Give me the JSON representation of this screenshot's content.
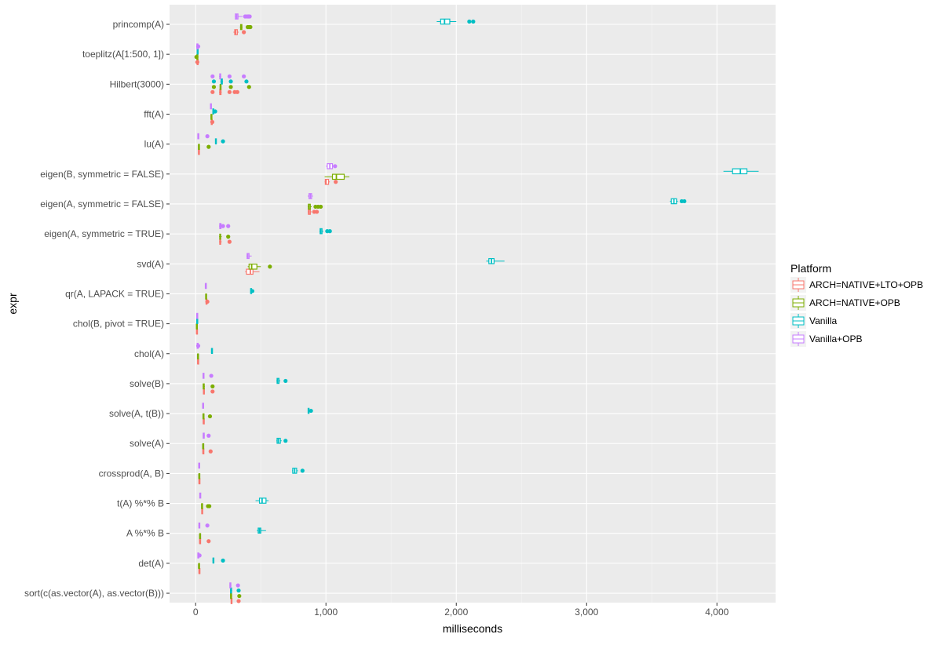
{
  "chart_data": {
    "type": "boxplot",
    "orientation": "horizontal",
    "xlabel": "milliseconds",
    "ylabel": "expr",
    "xlim": [
      -200,
      4450
    ],
    "x_ticks": [
      0,
      1000,
      2000,
      3000,
      4000
    ],
    "x_tick_labels": [
      "0",
      "1,000",
      "2,000",
      "3,000",
      "4,000"
    ],
    "grid": true,
    "legend_position": "right",
    "legend": {
      "title": "Platform",
      "entries": [
        "ARCH=NATIVE+LTO+OPB",
        "ARCH=NATIVE+OPB",
        "Vanilla",
        "Vanilla+OPB"
      ]
    },
    "colors": {
      "ARCH=NATIVE+LTO+OPB": "#F8766D",
      "ARCH=NATIVE+OPB": "#7CAE00",
      "Vanilla": "#00BFC4",
      "Vanilla+OPB": "#C77CFF"
    },
    "panel_background": "#EBEBEB",
    "categories": [
      "princomp(A)",
      "toeplitz(A[1:500, 1])",
      "Hilbert(3000)",
      "fft(A)",
      "lu(A)",
      "eigen(B, symmetric = FALSE)",
      "eigen(A, symmetric = FALSE)",
      "eigen(A, symmetric = TRUE)",
      "svd(A)",
      "qr(A, LAPACK = TRUE)",
      "chol(B, pivot = TRUE)",
      "chol(A)",
      "solve(B)",
      "solve(A, t(B))",
      "solve(A)",
      "crossprod(A, B)",
      "t(A) %*% B",
      "A %*% B",
      "det(A)",
      "sort(c(as.vector(A), as.vector(B)))"
    ],
    "series": [
      {
        "name": "ARCH=NATIVE+LTO+OPB",
        "boxes": [
          {
            "min": 290,
            "q1": 300,
            "median": 307,
            "q3": 320,
            "max": 330,
            "outliers": [
              370
            ]
          },
          {
            "min": 10,
            "q1": 12,
            "median": 14,
            "q3": 16,
            "max": 18,
            "outliers": [
              13
            ]
          },
          {
            "min": 180,
            "q1": 185,
            "median": 190,
            "q3": 195,
            "max": 200,
            "outliers": [
              130,
              260,
              300,
              320
            ]
          },
          {
            "min": 118,
            "q1": 120,
            "median": 122,
            "q3": 124,
            "max": 126,
            "outliers": [
              128
            ]
          },
          {
            "min": 20,
            "q1": 22,
            "median": 24,
            "q3": 26,
            "max": 28,
            "outliers": []
          },
          {
            "min": 990,
            "q1": 995,
            "median": 1000,
            "q3": 1020,
            "max": 1030,
            "outliers": [
              1075
            ]
          },
          {
            "min": 860,
            "q1": 865,
            "median": 870,
            "q3": 880,
            "max": 890,
            "outliers": [
              910,
              930
            ]
          },
          {
            "min": 180,
            "q1": 185,
            "median": 188,
            "q3": 192,
            "max": 200,
            "outliers": [
              260
            ]
          },
          {
            "min": 380,
            "q1": 390,
            "median": 420,
            "q3": 440,
            "max": 490,
            "outliers": []
          },
          {
            "min": 78,
            "q1": 80,
            "median": 82,
            "q3": 84,
            "max": 86,
            "outliers": [
              90
            ]
          },
          {
            "min": 6,
            "q1": 7,
            "median": 8,
            "q3": 9,
            "max": 10,
            "outliers": []
          },
          {
            "min": 15,
            "q1": 16,
            "median": 17,
            "q3": 18,
            "max": 19,
            "outliers": []
          },
          {
            "min": 58,
            "q1": 60,
            "median": 62,
            "q3": 64,
            "max": 66,
            "outliers": [
              130
            ]
          },
          {
            "min": 58,
            "q1": 59,
            "median": 60,
            "q3": 61,
            "max": 62,
            "outliers": []
          },
          {
            "min": 55,
            "q1": 56,
            "median": 57,
            "q3": 58,
            "max": 59,
            "outliers": [
              115
            ]
          },
          {
            "min": 25,
            "q1": 26,
            "median": 27,
            "q3": 28,
            "max": 29,
            "outliers": []
          },
          {
            "min": 45,
            "q1": 47,
            "median": 49,
            "q3": 51,
            "max": 53,
            "outliers": []
          },
          {
            "min": 30,
            "q1": 31,
            "median": 32,
            "q3": 33,
            "max": 34,
            "outliers": [
              100
            ]
          },
          {
            "min": 25,
            "q1": 26,
            "median": 27,
            "q3": 28,
            "max": 29,
            "outliers": []
          },
          {
            "min": 270,
            "q1": 272,
            "median": 275,
            "q3": 278,
            "max": 280,
            "outliers": [
              330
            ]
          }
        ]
      },
      {
        "name": "ARCH=NATIVE+OPB",
        "boxes": [
          {
            "min": 340,
            "q1": 345,
            "median": 350,
            "q3": 355,
            "max": 360,
            "outliers": [
              400,
              410,
              420
            ]
          },
          {
            "min": 8,
            "q1": 10,
            "median": 12,
            "q3": 14,
            "max": 16,
            "outliers": [
              6
            ]
          },
          {
            "min": 185,
            "q1": 188,
            "median": 190,
            "q3": 194,
            "max": 198,
            "outliers": [
              140,
              270,
              410
            ]
          },
          {
            "min": 115,
            "q1": 118,
            "median": 120,
            "q3": 122,
            "max": 125,
            "outliers": []
          },
          {
            "min": 20,
            "q1": 22,
            "median": 24,
            "q3": 26,
            "max": 28,
            "outliers": [
              100
            ]
          },
          {
            "min": 990,
            "q1": 1050,
            "median": 1080,
            "q3": 1140,
            "max": 1180,
            "outliers": []
          },
          {
            "min": 860,
            "q1": 865,
            "median": 870,
            "q3": 880,
            "max": 890,
            "outliers": [
              920,
              940,
              960
            ]
          },
          {
            "min": 180,
            "q1": 185,
            "median": 188,
            "q3": 192,
            "max": 200,
            "outliers": [
              250
            ]
          },
          {
            "min": 400,
            "q1": 410,
            "median": 430,
            "q3": 470,
            "max": 500,
            "outliers": [
              570
            ]
          },
          {
            "min": 75,
            "q1": 77,
            "median": 79,
            "q3": 81,
            "max": 83,
            "outliers": []
          },
          {
            "min": 5,
            "q1": 6,
            "median": 7,
            "q3": 8,
            "max": 9,
            "outliers": []
          },
          {
            "min": 14,
            "q1": 15,
            "median": 16,
            "q3": 17,
            "max": 18,
            "outliers": []
          },
          {
            "min": 55,
            "q1": 58,
            "median": 62,
            "q3": 66,
            "max": 70,
            "outliers": [
              130
            ]
          },
          {
            "min": 56,
            "q1": 57,
            "median": 58,
            "q3": 59,
            "max": 60,
            "outliers": [
              110
            ]
          },
          {
            "min": 54,
            "q1": 55,
            "median": 56,
            "q3": 57,
            "max": 58,
            "outliers": []
          },
          {
            "min": 24,
            "q1": 25,
            "median": 26,
            "q3": 27,
            "max": 28,
            "outliers": []
          },
          {
            "min": 44,
            "q1": 46,
            "median": 48,
            "q3": 50,
            "max": 52,
            "outliers": [
              95,
              105
            ]
          },
          {
            "min": 30,
            "q1": 31,
            "median": 32,
            "q3": 33,
            "max": 34,
            "outliers": []
          },
          {
            "min": 22,
            "q1": 23,
            "median": 24,
            "q3": 25,
            "max": 26,
            "outliers": []
          },
          {
            "min": 265,
            "q1": 268,
            "median": 272,
            "q3": 276,
            "max": 280,
            "outliers": [
              335
            ]
          }
        ]
      },
      {
        "name": "Vanilla",
        "boxes": [
          {
            "min": 1850,
            "q1": 1880,
            "median": 1910,
            "q3": 1950,
            "max": 2000,
            "outliers": [
              2100,
              2130
            ]
          },
          {
            "min": 10,
            "q1": 12,
            "median": 14,
            "q3": 16,
            "max": 18,
            "outliers": []
          },
          {
            "min": 190,
            "q1": 195,
            "median": 200,
            "q3": 205,
            "max": 210,
            "outliers": [
              140,
              270,
              390
            ]
          },
          {
            "min": 130,
            "q1": 132,
            "median": 135,
            "q3": 138,
            "max": 140,
            "outliers": [
              150
            ]
          },
          {
            "min": 150,
            "q1": 152,
            "median": 155,
            "q3": 158,
            "max": 160,
            "outliers": [
              210
            ]
          },
          {
            "min": 4050,
            "q1": 4120,
            "median": 4180,
            "q3": 4230,
            "max": 4320,
            "outliers": []
          },
          {
            "min": 3640,
            "q1": 3650,
            "median": 3670,
            "q3": 3690,
            "max": 3700,
            "outliers": [
              3730,
              3750
            ]
          },
          {
            "min": 950,
            "q1": 955,
            "median": 960,
            "q3": 970,
            "max": 980,
            "outliers": [
              1010,
              1030
            ]
          },
          {
            "min": 2230,
            "q1": 2250,
            "median": 2270,
            "q3": 2290,
            "max": 2370,
            "outliers": []
          },
          {
            "min": 420,
            "q1": 422,
            "median": 425,
            "q3": 428,
            "max": 430,
            "outliers": [
              435
            ]
          },
          {
            "min": 8,
            "q1": 9,
            "median": 10,
            "q3": 11,
            "max": 12,
            "outliers": []
          },
          {
            "min": 120,
            "q1": 122,
            "median": 124,
            "q3": 126,
            "max": 128,
            "outliers": []
          },
          {
            "min": 620,
            "q1": 625,
            "median": 630,
            "q3": 640,
            "max": 650,
            "outliers": [
              690
            ]
          },
          {
            "min": 860,
            "q1": 863,
            "median": 866,
            "q3": 870,
            "max": 875,
            "outliers": [
              885
            ]
          },
          {
            "min": 620,
            "q1": 625,
            "median": 635,
            "q3": 650,
            "max": 660,
            "outliers": [
              690
            ]
          },
          {
            "min": 740,
            "q1": 745,
            "median": 760,
            "q3": 775,
            "max": 785,
            "outliers": [
              820
            ]
          },
          {
            "min": 460,
            "q1": 490,
            "median": 510,
            "q3": 540,
            "max": 560,
            "outliers": []
          },
          {
            "min": 470,
            "q1": 480,
            "median": 490,
            "q3": 500,
            "max": 540,
            "outliers": []
          },
          {
            "min": 130,
            "q1": 133,
            "median": 136,
            "q3": 139,
            "max": 142,
            "outliers": [
              210
            ]
          },
          {
            "min": 265,
            "q1": 268,
            "median": 272,
            "q3": 276,
            "max": 280,
            "outliers": [
              330
            ]
          }
        ]
      },
      {
        "name": "Vanilla+OPB",
        "boxes": [
          {
            "min": 300,
            "q1": 305,
            "median": 315,
            "q3": 325,
            "max": 360,
            "outliers": [
              380,
              395,
              405,
              415
            ]
          },
          {
            "min": 8,
            "q1": 10,
            "median": 12,
            "q3": 14,
            "max": 16,
            "outliers": [
              20
            ]
          },
          {
            "min": 180,
            "q1": 185,
            "median": 188,
            "q3": 192,
            "max": 196,
            "outliers": [
              130,
              260,
              370
            ]
          },
          {
            "min": 112,
            "q1": 114,
            "median": 116,
            "q3": 118,
            "max": 120,
            "outliers": []
          },
          {
            "min": 15,
            "q1": 17,
            "median": 19,
            "q3": 21,
            "max": 23,
            "outliers": [
              90
            ]
          },
          {
            "min": 1000,
            "q1": 1010,
            "median": 1030,
            "q3": 1050,
            "max": 1060,
            "outliers": [
              1070
            ]
          },
          {
            "min": 860,
            "q1": 870,
            "median": 880,
            "q3": 890,
            "max": 900,
            "outliers": []
          },
          {
            "min": 180,
            "q1": 185,
            "median": 190,
            "q3": 195,
            "max": 200,
            "outliers": [
              210,
              250
            ]
          },
          {
            "min": 390,
            "q1": 395,
            "median": 400,
            "q3": 410,
            "max": 430,
            "outliers": []
          },
          {
            "min": 74,
            "q1": 75,
            "median": 76,
            "q3": 77,
            "max": 78,
            "outliers": []
          },
          {
            "min": 8,
            "q1": 9,
            "median": 10,
            "q3": 11,
            "max": 12,
            "outliers": []
          },
          {
            "min": 10,
            "q1": 12,
            "median": 14,
            "q3": 16,
            "max": 18,
            "outliers": [
              20
            ]
          },
          {
            "min": 55,
            "q1": 57,
            "median": 60,
            "q3": 63,
            "max": 66,
            "outliers": [
              120
            ]
          },
          {
            "min": 52,
            "q1": 54,
            "median": 56,
            "q3": 58,
            "max": 60,
            "outliers": []
          },
          {
            "min": 55,
            "q1": 58,
            "median": 62,
            "q3": 66,
            "max": 70,
            "outliers": [
              100
            ]
          },
          {
            "min": 22,
            "q1": 24,
            "median": 26,
            "q3": 28,
            "max": 30,
            "outliers": []
          },
          {
            "min": 30,
            "q1": 32,
            "median": 34,
            "q3": 36,
            "max": 38,
            "outliers": []
          },
          {
            "min": 22,
            "q1": 25,
            "median": 28,
            "q3": 32,
            "max": 35,
            "outliers": [
              90
            ]
          },
          {
            "min": 15,
            "q1": 17,
            "median": 19,
            "q3": 21,
            "max": 23,
            "outliers": [
              30
            ]
          },
          {
            "min": 260,
            "q1": 263,
            "median": 266,
            "q3": 270,
            "max": 274,
            "outliers": [
              325
            ]
          }
        ]
      }
    ]
  }
}
